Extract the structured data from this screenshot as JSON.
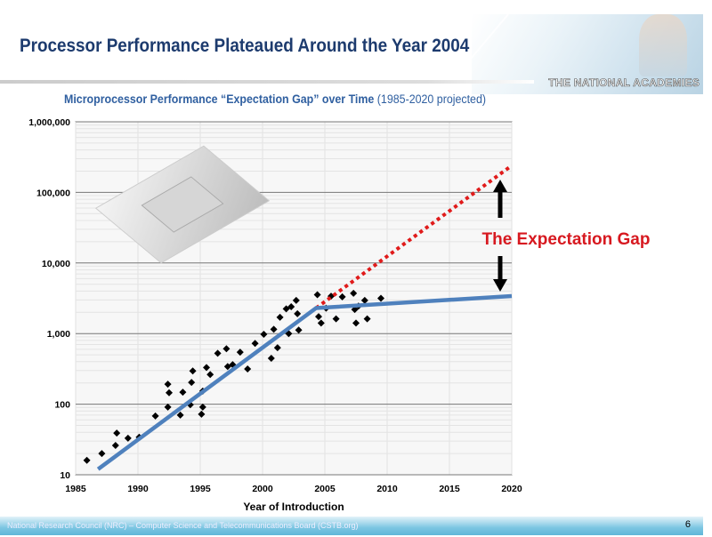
{
  "header": {
    "title": "Processor Performance Plateaued Around the Year 2004",
    "logo_text": "THE NATIONAL ACADEMIES"
  },
  "subtitle": {
    "bold": "Microprocessor Performance “Expectation Gap” over Time",
    "normal": " (1985-2020 projected)"
  },
  "annotation": {
    "label": "The Expectation Gap",
    "color": "#d71920"
  },
  "footer": {
    "text": "National Research Council (NRC) – Computer Science and Telecommunications Board (CSTB.org)",
    "page": "6"
  },
  "chart_data": {
    "type": "scatter",
    "xlabel": "Year of Introduction",
    "ylabel": "",
    "xlim": [
      1985,
      2020
    ],
    "ylim": [
      10,
      1000000
    ],
    "yscale": "log",
    "grid": true,
    "xticks": [
      "1985",
      "1990",
      "1995",
      "2000",
      "2005",
      "2010",
      "2015",
      "2020"
    ],
    "yticks": [
      "10",
      "100",
      "1,000",
      "10,000",
      "100,000",
      "1,000,000"
    ],
    "points": [
      [
        1985.9,
        16
      ],
      [
        1987.1,
        20
      ],
      [
        1988.3,
        39
      ],
      [
        1988.2,
        26
      ],
      [
        1989.2,
        33
      ],
      [
        1990.1,
        34
      ],
      [
        1991.4,
        68
      ],
      [
        1992.4,
        91
      ],
      [
        1992.5,
        145
      ],
      [
        1992.4,
        192
      ],
      [
        1993.4,
        70
      ],
      [
        1993.6,
        148
      ],
      [
        1994.2,
        98
      ],
      [
        1994.3,
        203
      ],
      [
        1994.4,
        295
      ],
      [
        1995.1,
        72
      ],
      [
        1995.2,
        91
      ],
      [
        1995.2,
        153
      ],
      [
        1995.5,
        331
      ],
      [
        1995.8,
        263
      ],
      [
        1996.4,
        525
      ],
      [
        1997.1,
        610
      ],
      [
        1997.2,
        341
      ],
      [
        1997.6,
        363
      ],
      [
        1998.2,
        545
      ],
      [
        1998.8,
        315
      ],
      [
        1999.4,
        725
      ],
      [
        2000.1,
        977
      ],
      [
        2000.7,
        446
      ],
      [
        2000.9,
        1150
      ],
      [
        2001.2,
        630
      ],
      [
        2001.4,
        1700
      ],
      [
        2001.9,
        2240
      ],
      [
        2002.1,
        1000
      ],
      [
        2002.3,
        2400
      ],
      [
        2002.7,
        2950
      ],
      [
        2002.8,
        1910
      ],
      [
        2002.9,
        1120
      ],
      [
        2004.4,
        3550
      ],
      [
        2004.5,
        1740
      ],
      [
        2004.7,
        1410
      ],
      [
        2005.1,
        2290
      ],
      [
        2005.5,
        3390
      ],
      [
        2005.9,
        1620
      ],
      [
        2006.4,
        3310
      ],
      [
        2007.3,
        3720
      ],
      [
        2007.4,
        2190
      ],
      [
        2007.5,
        1410
      ],
      [
        2007.7,
        2450
      ],
      [
        2008.2,
        2950
      ],
      [
        2008.4,
        1620
      ],
      [
        2009.5,
        3160
      ]
    ],
    "trend_actual": {
      "color": "#4f81bd",
      "values": [
        [
          1986.8,
          12
        ],
        [
          2004.3,
          2300
        ],
        [
          2020,
          3400
        ]
      ]
    },
    "trend_expected": {
      "color": "#e01b1b",
      "style": "dotted",
      "values": [
        [
          2004.3,
          2300
        ],
        [
          2020,
          240000
        ]
      ]
    }
  }
}
